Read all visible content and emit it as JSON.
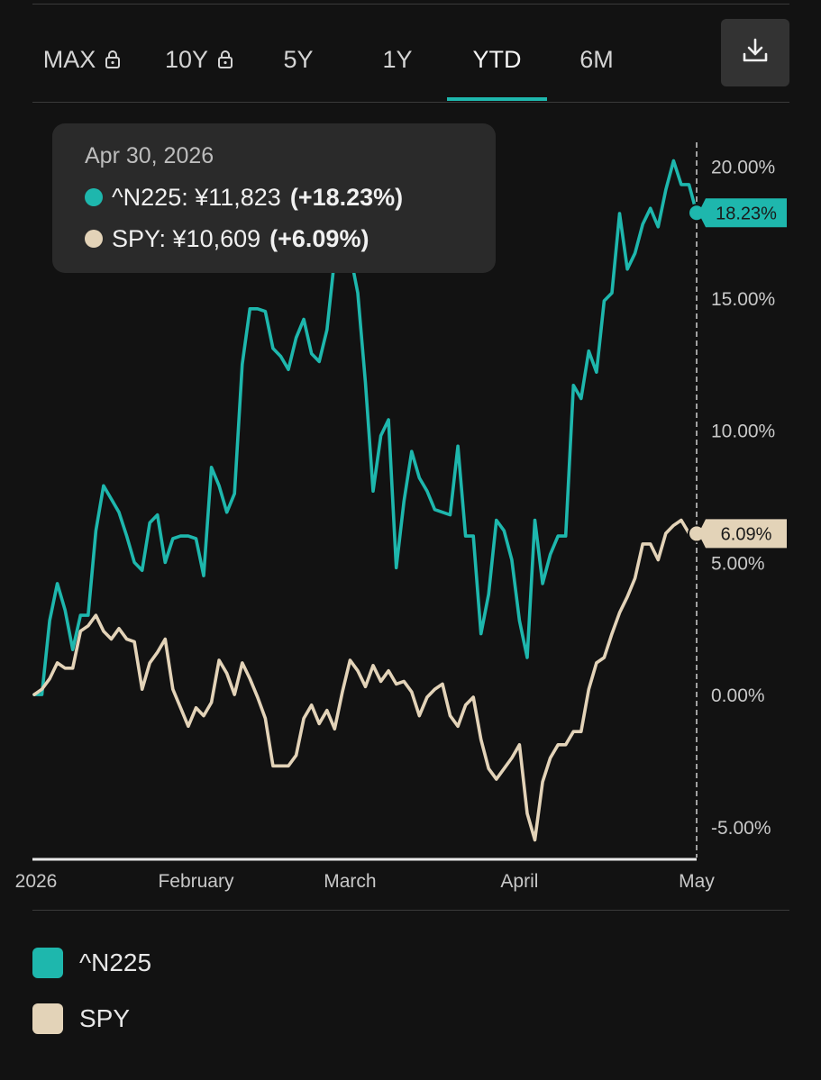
{
  "tabs": [
    {
      "label": "MAX",
      "locked": true
    },
    {
      "label": "10Y",
      "locked": true
    },
    {
      "label": "5Y",
      "locked": false
    },
    {
      "label": "1Y",
      "locked": false
    },
    {
      "label": "YTD",
      "locked": false,
      "active": true
    },
    {
      "label": "6M",
      "locked": false
    }
  ],
  "colors": {
    "n225": "#1eb7ad",
    "spy": "#e3d3b8",
    "accent": "#1eb7ad"
  },
  "tooltip": {
    "date": "Apr 30, 2026",
    "n225_label": "^N225: ¥11,823",
    "n225_change": "(+18.23%)",
    "spy_label": "SPY: ¥10,609",
    "spy_change": "(+6.09%)"
  },
  "legend": [
    {
      "name": "^N225"
    },
    {
      "name": "SPY"
    }
  ],
  "chart_data": {
    "type": "line",
    "x_tick_labels": [
      "2026",
      "February",
      "March",
      "April",
      "May"
    ],
    "y_tick_labels": [
      "20.00%",
      "15.00%",
      "10.00%",
      "5.00%",
      "0.00%",
      "-5.00%"
    ],
    "yticks": [
      20,
      15,
      10,
      5,
      0,
      -5
    ],
    "ylim": [
      -6.2,
      21
    ],
    "x_range": [
      0,
      86
    ],
    "x_tick_positions": [
      0,
      21,
      41,
      63,
      86
    ],
    "end_labels": {
      "n225": "18.23%",
      "spy": "6.09%"
    },
    "series": [
      {
        "name": "^N225",
        "key": "n225",
        "values": [
          0,
          0,
          2.8,
          4.2,
          3.2,
          1.7,
          3,
          3,
          6.2,
          7.9,
          7.4,
          6.9,
          6,
          5,
          4.7,
          6.5,
          6.8,
          5,
          5.9,
          6,
          6,
          5.9,
          4.5,
          8.6,
          7.9,
          6.9,
          7.6,
          12.5,
          14.6,
          14.6,
          14.5,
          13.1,
          12.8,
          12.3,
          13.5,
          14.2,
          12.9,
          12.6,
          13.8,
          16.5,
          17,
          16.7,
          15.2,
          11.8,
          7.7,
          9.8,
          10.4,
          4.8,
          7.3,
          9.2,
          8.2,
          7.7,
          7,
          6.9,
          6.8,
          9.4,
          6,
          6,
          2.3,
          3.8,
          6.6,
          6.2,
          5.1,
          2.8,
          1.4,
          6.6,
          4.2,
          5.3,
          6,
          6,
          11.7,
          11.2,
          13,
          12.2,
          14.9,
          15.2,
          18.2,
          16.1,
          16.7,
          17.8,
          18.4,
          17.7,
          19.1,
          20.2,
          19.3,
          19.3,
          18.23
        ]
      },
      {
        "name": "SPY",
        "key": "spy",
        "values": [
          0,
          0.2,
          0.6,
          1.2,
          1,
          1,
          2.4,
          2.6,
          3,
          2.4,
          2.1,
          2.5,
          2.1,
          2,
          0.2,
          1.2,
          1.6,
          2.1,
          0.2,
          -0.5,
          -1.2,
          -0.5,
          -0.8,
          -0.3,
          1.3,
          0.8,
          0,
          1.2,
          0.6,
          -0.1,
          -0.9,
          -2.7,
          -2.7,
          -2.7,
          -2.3,
          -0.9,
          -0.4,
          -1.1,
          -0.6,
          -1.3,
          0.1,
          1.3,
          0.9,
          0.3,
          1.1,
          0.5,
          0.9,
          0.4,
          0.5,
          0.1,
          -0.8,
          -0.1,
          0.2,
          0.4,
          -0.8,
          -1.2,
          -0.4,
          -0.1,
          -1.7,
          -2.8,
          -3.2,
          -2.8,
          -2.4,
          -1.9,
          -4.5,
          -5.5,
          -3.3,
          -2.4,
          -1.9,
          -1.9,
          -1.4,
          -1.4,
          0.2,
          1.2,
          1.4,
          2.3,
          3.1,
          3.7,
          4.4,
          5.7,
          5.7,
          5.1,
          6.1,
          6.4,
          6.6,
          6.1,
          6.09
        ]
      }
    ]
  }
}
